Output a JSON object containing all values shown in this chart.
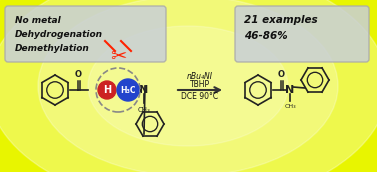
{
  "bg_color": "#e8f500",
  "bg_color2": "#f5ff80",
  "arrow_color": "#333333",
  "reaction_conditions": [
    "nBu₄NI",
    "TBHP",
    "DCE 90°C"
  ],
  "left_box_text": [
    "No metal",
    "Dehydrogenation",
    "Demethylation"
  ],
  "right_box_text": [
    "21 examples",
    "46-86%"
  ],
  "box_face_color": "#c8cfd8",
  "box_edge_color": "#aaaaaa",
  "scissors_color": "#ff2200",
  "dashed_circle_color": "#888888",
  "h_ball_color": "#cc2222",
  "h_ball_text": "H",
  "h3c_ball_color": "#2244cc",
  "h3c_ball_text": "H₃C",
  "bond_color": "#222222",
  "nitrogen_color": "#222222",
  "oxygen_color": "#222222"
}
